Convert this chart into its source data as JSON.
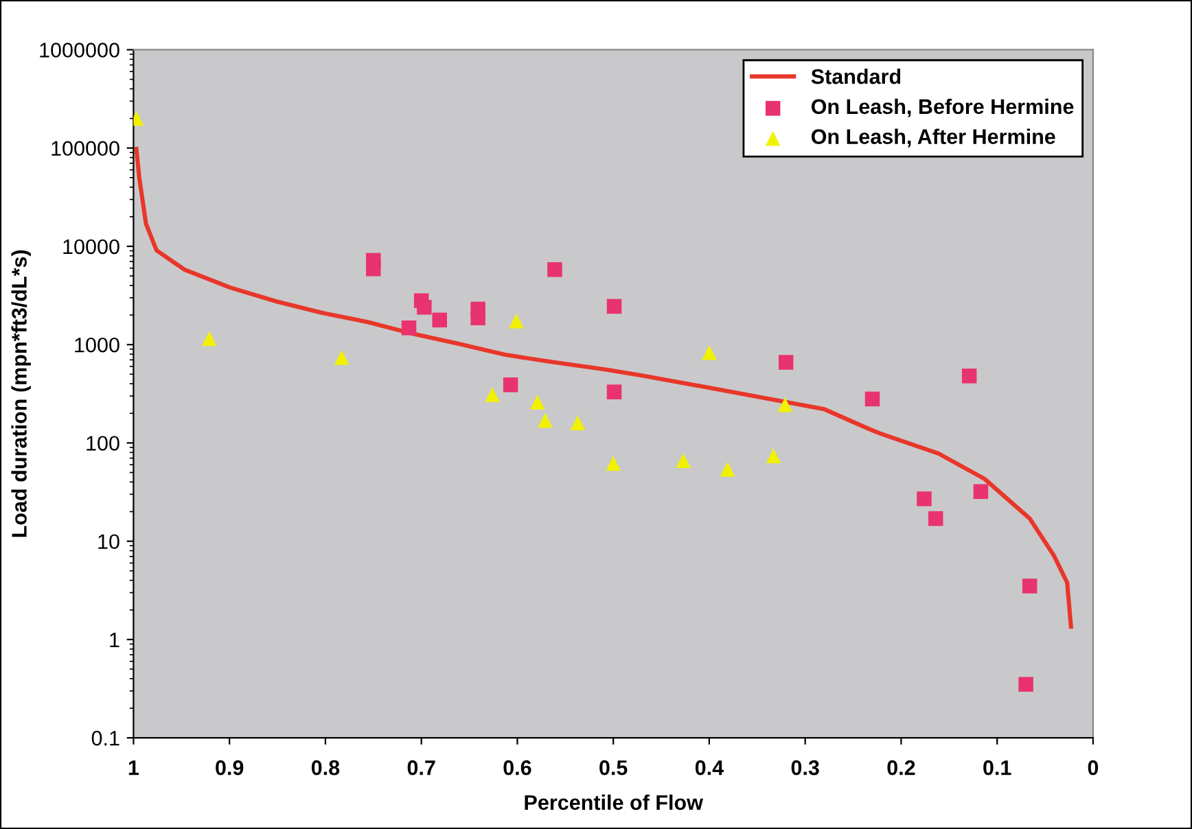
{
  "chart_data": {
    "type": "scatter",
    "xlabel": "Percentile of Flow",
    "ylabel": "Load duration (mpn*ft3/dL*s)",
    "log": "y",
    "xlim": [
      1,
      0
    ],
    "xticks": [
      1,
      0.9,
      0.8,
      0.7,
      0.6,
      0.5,
      0.4,
      0.3,
      0.2,
      0.1,
      0
    ],
    "ylim": [
      0.1,
      1000000
    ],
    "yticks": [
      0.1,
      1,
      10,
      100,
      1000,
      10000,
      100000,
      1000000
    ],
    "grid": false,
    "legend": "top right",
    "series": [
      {
        "name": "Standard",
        "type": "line",
        "color": "#e8372a",
        "marker": "none",
        "line_style": "solid",
        "x": [
          0.997,
          0.994,
          0.987,
          0.976,
          0.947,
          0.899,
          0.851,
          0.803,
          0.756,
          0.709,
          0.661,
          0.613,
          0.566,
          0.509,
          0.47,
          0.376,
          0.28,
          0.233,
          0.223,
          0.161,
          0.113,
          0.066,
          0.041,
          0.027,
          0.023
        ],
        "values": [
          98000,
          50000,
          17000,
          9100,
          5800,
          3800,
          2750,
          2100,
          1700,
          1290,
          1020,
          790,
          670,
          560,
          485,
          330,
          220,
          138,
          126,
          78,
          43,
          17,
          7.2,
          3.8,
          1.35
        ]
      },
      {
        "name": "On Leash, Before Hermine",
        "color": "#e8336e",
        "marker": "square",
        "x": [
          0.75,
          0.75,
          0.713,
          0.7,
          0.697,
          0.681,
          0.641,
          0.641,
          0.607,
          0.561,
          0.499,
          0.499,
          0.32,
          0.23,
          0.176,
          0.164,
          0.129,
          0.117,
          0.066,
          0.07
        ],
        "values": [
          7200,
          5900,
          1480,
          2800,
          2400,
          1780,
          2300,
          1870,
          390,
          5800,
          2450,
          330,
          660,
          280,
          27,
          17,
          480,
          32,
          3.5,
          0.35
        ]
      },
      {
        "name": "On Leash, After Hermine",
        "color": "#f2f200",
        "marker": "triangle",
        "x": [
          0.997,
          0.921,
          0.783,
          0.626,
          0.601,
          0.579,
          0.571,
          0.537,
          0.5,
          0.427,
          0.4,
          0.381,
          0.333,
          0.321
        ],
        "values": [
          200000,
          1150,
          740,
          310,
          1740,
          260,
          170,
          160,
          62,
          66,
          830,
          54,
          74,
          245
        ]
      }
    ]
  }
}
